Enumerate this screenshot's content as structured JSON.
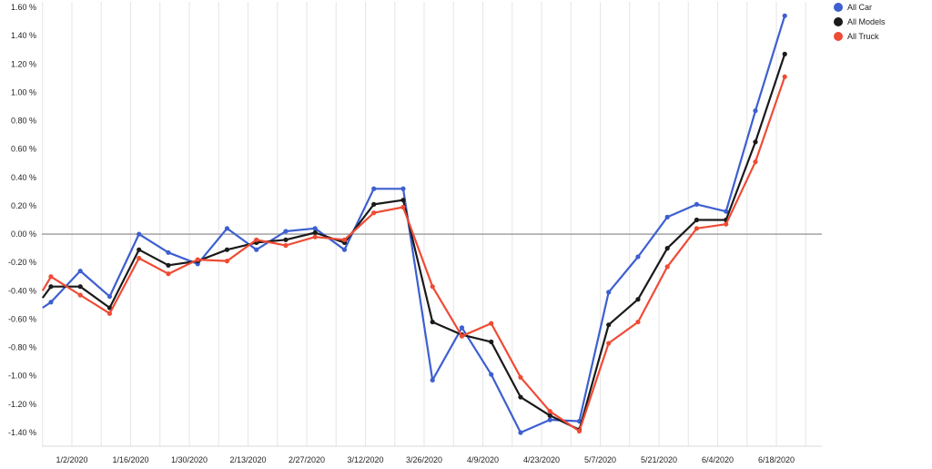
{
  "chart_data": {
    "type": "line",
    "title": "",
    "xlabel": "",
    "ylabel": "",
    "ylim": [
      -1.45,
      1.62
    ],
    "y_ticks": [
      1.6,
      1.4,
      1.2,
      1.0,
      0.8,
      0.6,
      0.4,
      0.2,
      0.0,
      -0.2,
      -0.4,
      -0.6,
      -0.8,
      -1.0,
      -1.2,
      -1.4
    ],
    "y_tick_labels": [
      "1.60 %",
      "1.40 %",
      "1.20 %",
      "1.00 %",
      "0.80 %",
      "0.60 %",
      "0.40 %",
      "0.20 %",
      "0.00 %",
      "-0.20 %",
      "-0.40 %",
      "-0.60 %",
      "-0.80 %",
      "-1.00 %",
      "-1.20 %",
      "-1.40 %"
    ],
    "x_tick_labels": [
      "1/2/2020",
      "1/16/2020",
      "1/30/2020",
      "2/13/2020",
      "2/27/2020",
      "3/12/2020",
      "3/26/2020",
      "4/9/2020",
      "4/23/2020",
      "5/7/2020",
      "5/21/2020",
      "6/4/2020",
      "6/18/2020"
    ],
    "x_start_date": "2019-12-26",
    "x_end_date": "2020-06-27",
    "dates": [
      "2019-12-26",
      "2019-12-28",
      "2020-01-04",
      "2020-01-11",
      "2020-01-18",
      "2020-01-25",
      "2020-02-01",
      "2020-02-08",
      "2020-02-15",
      "2020-02-22",
      "2020-02-29",
      "2020-03-07",
      "2020-03-14",
      "2020-03-21",
      "2020-03-28",
      "2020-04-04",
      "2020-04-11",
      "2020-04-18",
      "2020-04-25",
      "2020-05-02",
      "2020-05-09",
      "2020-05-16",
      "2020-05-23",
      "2020-05-30",
      "2020-06-06",
      "2020-06-13",
      "2020-06-20"
    ],
    "series": [
      {
        "name": "All Car",
        "color": "#3d5fd0",
        "values": [
          -0.52,
          -0.48,
          -0.26,
          -0.44,
          0.0,
          -0.13,
          -0.21,
          0.04,
          -0.11,
          0.02,
          0.04,
          -0.11,
          0.32,
          0.32,
          -1.03,
          -0.66,
          -0.99,
          -1.4,
          -1.31,
          -1.32,
          -0.41,
          -0.16,
          0.12,
          0.21,
          0.16,
          0.87,
          1.54
        ]
      },
      {
        "name": "All Models",
        "color": "#1a1a1a",
        "values": [
          -0.45,
          -0.37,
          -0.37,
          -0.52,
          -0.11,
          -0.22,
          -0.19,
          -0.11,
          -0.06,
          -0.04,
          0.01,
          -0.06,
          0.21,
          0.24,
          -0.62,
          -0.71,
          -0.76,
          -1.15,
          -1.28,
          -1.38,
          -0.64,
          -0.46,
          -0.1,
          0.1,
          0.1,
          0.65,
          1.27
        ]
      },
      {
        "name": "All Truck",
        "color": "#ef4b35",
        "values": [
          -0.4,
          -0.3,
          -0.43,
          -0.56,
          -0.17,
          -0.28,
          -0.18,
          -0.19,
          -0.04,
          -0.08,
          -0.02,
          -0.04,
          0.15,
          0.19,
          -0.37,
          -0.72,
          -0.63,
          -1.01,
          -1.25,
          -1.39,
          -0.77,
          -0.62,
          -0.23,
          0.04,
          0.07,
          0.51,
          1.11
        ]
      }
    ],
    "grid": "vertical",
    "zero_line": true,
    "legend": {
      "placement": "top-right",
      "items": [
        "All Car",
        "All Models",
        "All Truck"
      ]
    }
  }
}
